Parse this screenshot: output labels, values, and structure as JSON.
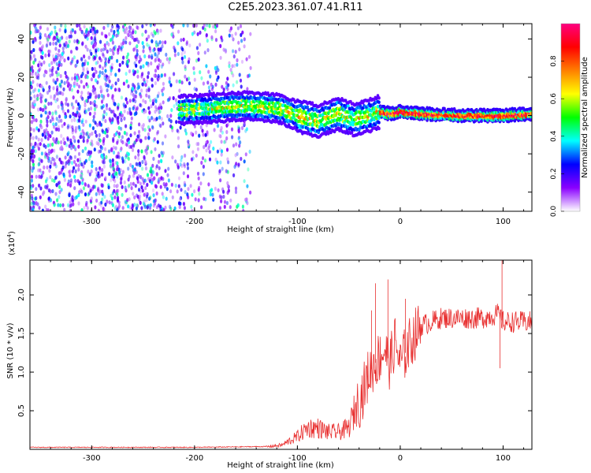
{
  "title": "C2E5.2023.361.07.41.R11",
  "chart_data": [
    {
      "type": "heatmap",
      "title": "C2E5.2023.361.07.41.R11",
      "xlabel": "Height of straight line (km)",
      "ylabel": "Frequency (Hz)",
      "xlim": [
        -360,
        128
      ],
      "ylim": [
        -50,
        48
      ],
      "xticks": [
        -300,
        -200,
        -100,
        0,
        100
      ],
      "yticks": [
        -40,
        -20,
        0,
        20,
        40
      ],
      "grid": false,
      "colorbar": {
        "label": "Normalized spectral amplitude",
        "range": [
          0,
          1
        ],
        "ticks": [
          "0.0",
          "0.2",
          "0.4",
          "0.6",
          "0.8"
        ],
        "colors": [
          "#ffffff",
          "#8a00ff",
          "#0000ff",
          "#00ffff",
          "#00ff00",
          "#ffff00",
          "#ff7f00",
          "#ff0000",
          "#ff0080"
        ]
      },
      "ridge": {
        "x": [
          -210,
          -180,
          -150,
          -120,
          -100,
          -80,
          -60,
          -45,
          -30,
          -20,
          -10,
          0,
          20,
          60,
          100,
          128
        ],
        "y": [
          3,
          4,
          5,
          4,
          0,
          -3,
          1,
          -2,
          0,
          2,
          1,
          2,
          1,
          0,
          0,
          1
        ],
        "peak_amplitude": 0.95
      },
      "noise_region": {
        "x_range": [
          -360,
          -145
        ],
        "amplitude": 0.4
      }
    },
    {
      "type": "line",
      "xlabel": "Height of straight line (km)",
      "ylabel": "SNR (10 * v/v)",
      "yscale_label": "(x10",
      "yscale_exponent": "4",
      "scale_factor": 10000,
      "xlim": [
        -360,
        128
      ],
      "ylim": [
        0,
        2.45
      ],
      "xticks": [
        -300,
        -200,
        -100,
        0,
        100
      ],
      "yticks": [
        "0.5",
        "1.0",
        "1.5",
        "2.0"
      ],
      "grid": false,
      "color": "#e83030",
      "series": [
        {
          "x": [
            -360,
            -200,
            -130,
            -115,
            -100,
            -90,
            -80,
            -70,
            -60,
            -50,
            -40,
            -35,
            -30,
            -25,
            -20,
            -15,
            -10,
            -5,
            0,
            10,
            20,
            30,
            40,
            60,
            80,
            95,
            100,
            110,
            128
          ],
          "y": [
            0.02,
            0.02,
            0.03,
            0.05,
            0.15,
            0.25,
            0.25,
            0.2,
            0.2,
            0.25,
            0.6,
            0.8,
            1.0,
            1.1,
            1.2,
            1.3,
            1.1,
            1.4,
            1.1,
            1.4,
            1.6,
            1.65,
            1.7,
            1.7,
            1.7,
            1.75,
            1.65,
            1.65,
            1.65
          ]
        }
      ],
      "spikes": [
        {
          "x": -28,
          "y": 1.8
        },
        {
          "x": -24,
          "y": 2.15
        },
        {
          "x": -12,
          "y": 2.2
        },
        {
          "x": 5,
          "y": 1.95
        },
        {
          "x": 99,
          "y": 2.45
        },
        {
          "x": 97,
          "y": 1.05
        }
      ]
    }
  ]
}
